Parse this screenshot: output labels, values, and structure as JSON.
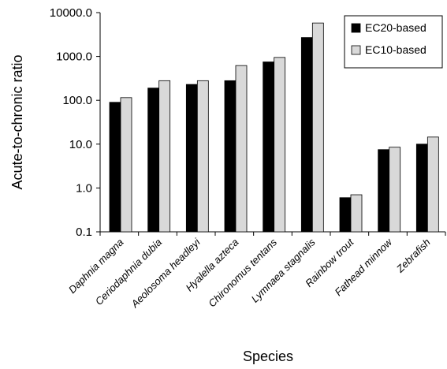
{
  "chart_data": {
    "type": "bar",
    "title": "",
    "xlabel": "Species",
    "ylabel": "Acute-to-chronic ratio",
    "yscale": "log",
    "ylim": [
      0.1,
      10000
    ],
    "yticks": [
      "0.1",
      "1.0",
      "10.0",
      "100.0",
      "1000.0",
      "10000.0"
    ],
    "grid": false,
    "legend_position": "top-right",
    "categories": [
      "Daphnia magna",
      "Ceriodaphnia dubia",
      "Aeolosoma headleyi",
      "Hyalella azteca",
      "Chironomus tentans",
      "Lymnaea stagnalis",
      "Rainbow trout",
      "Fathead minnow",
      "Zebrafish"
    ],
    "series": [
      {
        "name": "EC20-based",
        "color": "#000000",
        "values": [
          90,
          190,
          230,
          280,
          750,
          2700,
          0.6,
          7.5,
          10
        ]
      },
      {
        "name": "EC10-based",
        "color": "#d9d9d9",
        "values": [
          115,
          280,
          280,
          620,
          950,
          5800,
          0.7,
          8.5,
          14.5
        ]
      }
    ]
  }
}
